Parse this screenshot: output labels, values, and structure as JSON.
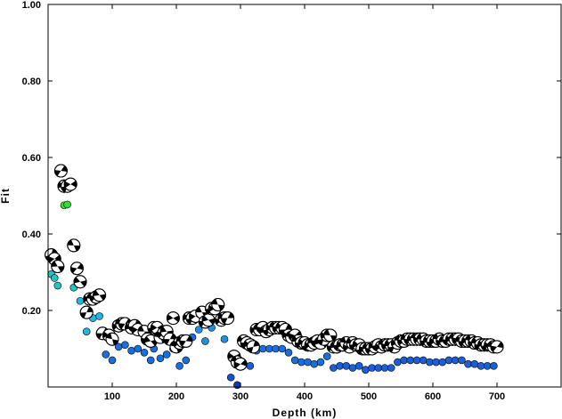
{
  "chart_data": {
    "type": "scatter",
    "xlabel": "Depth (km)",
    "ylabel": "Fit",
    "xlim": [
      0,
      800
    ],
    "ylim": [
      0,
      1.0
    ],
    "x_ticks": [
      100,
      200,
      300,
      400,
      500,
      600,
      700
    ],
    "x_tick_labels": [
      "100",
      "200",
      "300",
      "400",
      "500",
      "600",
      "700"
    ],
    "y_ticks": [
      0.2,
      0.4,
      0.6,
      0.8,
      1.0
    ],
    "y_tick_labels": [
      "0.20",
      "0.40",
      "0.60",
      "0.80",
      "1.00"
    ],
    "grid": false,
    "legend": "none",
    "series": [
      {
        "marker": "focal-mechanism",
        "points": [
          [
            5,
            0.345
          ],
          [
            10,
            0.335
          ],
          [
            15,
            0.315
          ],
          [
            20,
            0.565
          ],
          [
            25,
            0.525
          ],
          [
            30,
            0.525
          ],
          [
            35,
            0.53
          ],
          [
            40,
            0.37
          ],
          [
            45,
            0.31
          ],
          [
            50,
            0.275
          ],
          [
            60,
            0.195
          ],
          [
            65,
            0.23
          ],
          [
            70,
            0.23
          ],
          [
            75,
            0.235
          ],
          [
            80,
            0.24
          ],
          [
            85,
            0.14
          ],
          [
            95,
            0.135
          ],
          [
            100,
            0.125
          ],
          [
            110,
            0.16
          ],
          [
            115,
            0.165
          ],
          [
            120,
            0.165
          ],
          [
            130,
            0.155
          ],
          [
            135,
            0.16
          ],
          [
            140,
            0.15
          ],
          [
            150,
            0.145
          ],
          [
            155,
            0.125
          ],
          [
            160,
            0.12
          ],
          [
            165,
            0.155
          ],
          [
            170,
            0.155
          ],
          [
            175,
            0.13
          ],
          [
            180,
            0.14
          ],
          [
            185,
            0.145
          ],
          [
            190,
            0.125
          ],
          [
            195,
            0.18
          ],
          [
            200,
            0.105
          ],
          [
            205,
            0.115
          ],
          [
            210,
            0.12
          ],
          [
            215,
            0.12
          ],
          [
            220,
            0.18
          ],
          [
            225,
            0.18
          ],
          [
            230,
            0.185
          ],
          [
            240,
            0.195
          ],
          [
            245,
            0.17
          ],
          [
            250,
            0.175
          ],
          [
            255,
            0.205
          ],
          [
            260,
            0.205
          ],
          [
            265,
            0.215
          ],
          [
            270,
            0.175
          ],
          [
            275,
            0.18
          ],
          [
            280,
            0.18
          ],
          [
            290,
            0.08
          ],
          [
            295,
            0.065
          ],
          [
            300,
            0.06
          ],
          [
            305,
            0.12
          ],
          [
            310,
            0.115
          ],
          [
            315,
            0.11
          ],
          [
            320,
            0.105
          ],
          [
            325,
            0.15
          ],
          [
            330,
            0.15
          ],
          [
            335,
            0.155
          ],
          [
            340,
            0.145
          ],
          [
            345,
            0.15
          ],
          [
            350,
            0.155
          ],
          [
            355,
            0.155
          ],
          [
            360,
            0.155
          ],
          [
            365,
            0.155
          ],
          [
            370,
            0.15
          ],
          [
            375,
            0.135
          ],
          [
            380,
            0.13
          ],
          [
            385,
            0.135
          ],
          [
            390,
            0.12
          ],
          [
            395,
            0.115
          ],
          [
            400,
            0.115
          ],
          [
            405,
            0.11
          ],
          [
            410,
            0.11
          ],
          [
            415,
            0.115
          ],
          [
            420,
            0.12
          ],
          [
            425,
            0.115
          ],
          [
            430,
            0.125
          ],
          [
            435,
            0.135
          ],
          [
            440,
            0.135
          ],
          [
            445,
            0.105
          ],
          [
            450,
            0.105
          ],
          [
            455,
            0.11
          ],
          [
            460,
            0.11
          ],
          [
            465,
            0.115
          ],
          [
            470,
            0.105
          ],
          [
            475,
            0.115
          ],
          [
            480,
            0.11
          ],
          [
            485,
            0.11
          ],
          [
            490,
            0.1
          ],
          [
            495,
            0.1
          ],
          [
            500,
            0.1
          ],
          [
            505,
            0.1
          ],
          [
            510,
            0.105
          ],
          [
            515,
            0.11
          ],
          [
            520,
            0.105
          ],
          [
            525,
            0.11
          ],
          [
            530,
            0.11
          ],
          [
            535,
            0.11
          ],
          [
            540,
            0.105
          ],
          [
            545,
            0.115
          ],
          [
            550,
            0.12
          ],
          [
            555,
            0.12
          ],
          [
            560,
            0.125
          ],
          [
            565,
            0.125
          ],
          [
            570,
            0.125
          ],
          [
            575,
            0.125
          ],
          [
            580,
            0.125
          ],
          [
            585,
            0.125
          ],
          [
            590,
            0.12
          ],
          [
            595,
            0.12
          ],
          [
            600,
            0.12
          ],
          [
            605,
            0.12
          ],
          [
            610,
            0.125
          ],
          [
            615,
            0.12
          ],
          [
            620,
            0.12
          ],
          [
            625,
            0.125
          ],
          [
            630,
            0.125
          ],
          [
            635,
            0.125
          ],
          [
            640,
            0.125
          ],
          [
            645,
            0.12
          ],
          [
            650,
            0.12
          ],
          [
            655,
            0.12
          ],
          [
            660,
            0.12
          ],
          [
            665,
            0.115
          ],
          [
            670,
            0.115
          ],
          [
            675,
            0.11
          ],
          [
            680,
            0.11
          ],
          [
            685,
            0.11
          ],
          [
            690,
            0.11
          ],
          [
            695,
            0.105
          ],
          [
            700,
            0.105
          ]
        ]
      },
      {
        "marker": "dot",
        "points": [
          [
            5,
            0.295,
            "#22c5c5"
          ],
          [
            10,
            0.285,
            "#22c5c5"
          ],
          [
            15,
            0.265,
            "#22c5c5"
          ],
          [
            25,
            0.475,
            "#33dd33"
          ],
          [
            30,
            0.477,
            "#33dd33"
          ],
          [
            40,
            0.26,
            "#22c5c5"
          ],
          [
            50,
            0.225,
            "#22b5dd"
          ],
          [
            60,
            0.145,
            "#22b5dd"
          ],
          [
            70,
            0.18,
            "#22b5dd"
          ],
          [
            80,
            0.185,
            "#22b5dd"
          ],
          [
            90,
            0.085,
            "#1a6fe0"
          ],
          [
            100,
            0.07,
            "#1a6fe0"
          ],
          [
            110,
            0.105,
            "#1a6fe0"
          ],
          [
            120,
            0.11,
            "#1a6fe0"
          ],
          [
            130,
            0.095,
            "#1a6fe0"
          ],
          [
            140,
            0.1,
            "#1a6fe0"
          ],
          [
            150,
            0.09,
            "#1a6fe0"
          ],
          [
            160,
            0.07,
            "#1a6fe0"
          ],
          [
            165,
            0.1,
            "#1a6fe0"
          ],
          [
            175,
            0.075,
            "#1a6fe0"
          ],
          [
            185,
            0.085,
            "#1a6fe0"
          ],
          [
            195,
            0.1,
            "#1a6fe0"
          ],
          [
            205,
            0.055,
            "#1a6fe0"
          ],
          [
            215,
            0.07,
            "#1a6fe0"
          ],
          [
            225,
            0.13,
            "#1a6fe0"
          ],
          [
            235,
            0.15,
            "#2290e0"
          ],
          [
            245,
            0.12,
            "#2290e0"
          ],
          [
            255,
            0.155,
            "#2290e0"
          ],
          [
            275,
            0.125,
            "#2290e0"
          ],
          [
            285,
            0.025,
            "#1a4fd0"
          ],
          [
            295,
            0.005,
            "#1533c0"
          ],
          [
            305,
            0.06,
            "#1a5fd5"
          ],
          [
            315,
            0.055,
            "#1a5fd5"
          ],
          [
            325,
            0.095,
            "#1a6fe0"
          ],
          [
            335,
            0.1,
            "#1a6fe0"
          ],
          [
            345,
            0.1,
            "#1a6fe0"
          ],
          [
            355,
            0.1,
            "#1a6fe0"
          ],
          [
            365,
            0.1,
            "#1a6fe0"
          ],
          [
            375,
            0.09,
            "#1a6fe0"
          ],
          [
            385,
            0.07,
            "#1a6fe0"
          ],
          [
            395,
            0.065,
            "#1a6fe0"
          ],
          [
            405,
            0.065,
            "#1a6fe0"
          ],
          [
            415,
            0.06,
            "#1a6fe0"
          ],
          [
            425,
            0.065,
            "#1a6fe0"
          ],
          [
            435,
            0.08,
            "#1a6fe0"
          ],
          [
            445,
            0.05,
            "#1a5fd5"
          ],
          [
            455,
            0.055,
            "#1a5fd5"
          ],
          [
            465,
            0.055,
            "#1a5fd5"
          ],
          [
            475,
            0.05,
            "#1a5fd5"
          ],
          [
            485,
            0.055,
            "#1a5fd5"
          ],
          [
            495,
            0.045,
            "#1a5fd5"
          ],
          [
            505,
            0.05,
            "#1a5fd5"
          ],
          [
            515,
            0.05,
            "#1a5fd5"
          ],
          [
            525,
            0.05,
            "#1a5fd5"
          ],
          [
            535,
            0.05,
            "#1a5fd5"
          ],
          [
            545,
            0.065,
            "#1a5fd5"
          ],
          [
            555,
            0.07,
            "#1a5fd5"
          ],
          [
            565,
            0.07,
            "#1a5fd5"
          ],
          [
            575,
            0.07,
            "#1a5fd5"
          ],
          [
            585,
            0.07,
            "#1a5fd5"
          ],
          [
            595,
            0.065,
            "#1a5fd5"
          ],
          [
            605,
            0.065,
            "#1a5fd5"
          ],
          [
            615,
            0.065,
            "#1a5fd5"
          ],
          [
            625,
            0.07,
            "#1a5fd5"
          ],
          [
            635,
            0.07,
            "#1a5fd5"
          ],
          [
            645,
            0.07,
            "#1a5fd5"
          ],
          [
            655,
            0.06,
            "#1a5fd5"
          ],
          [
            665,
            0.06,
            "#1a5fd5"
          ],
          [
            675,
            0.055,
            "#1a5fd5"
          ],
          [
            685,
            0.055,
            "#1a5fd5"
          ],
          [
            695,
            0.055,
            "#1a5fd5"
          ]
        ]
      }
    ]
  }
}
